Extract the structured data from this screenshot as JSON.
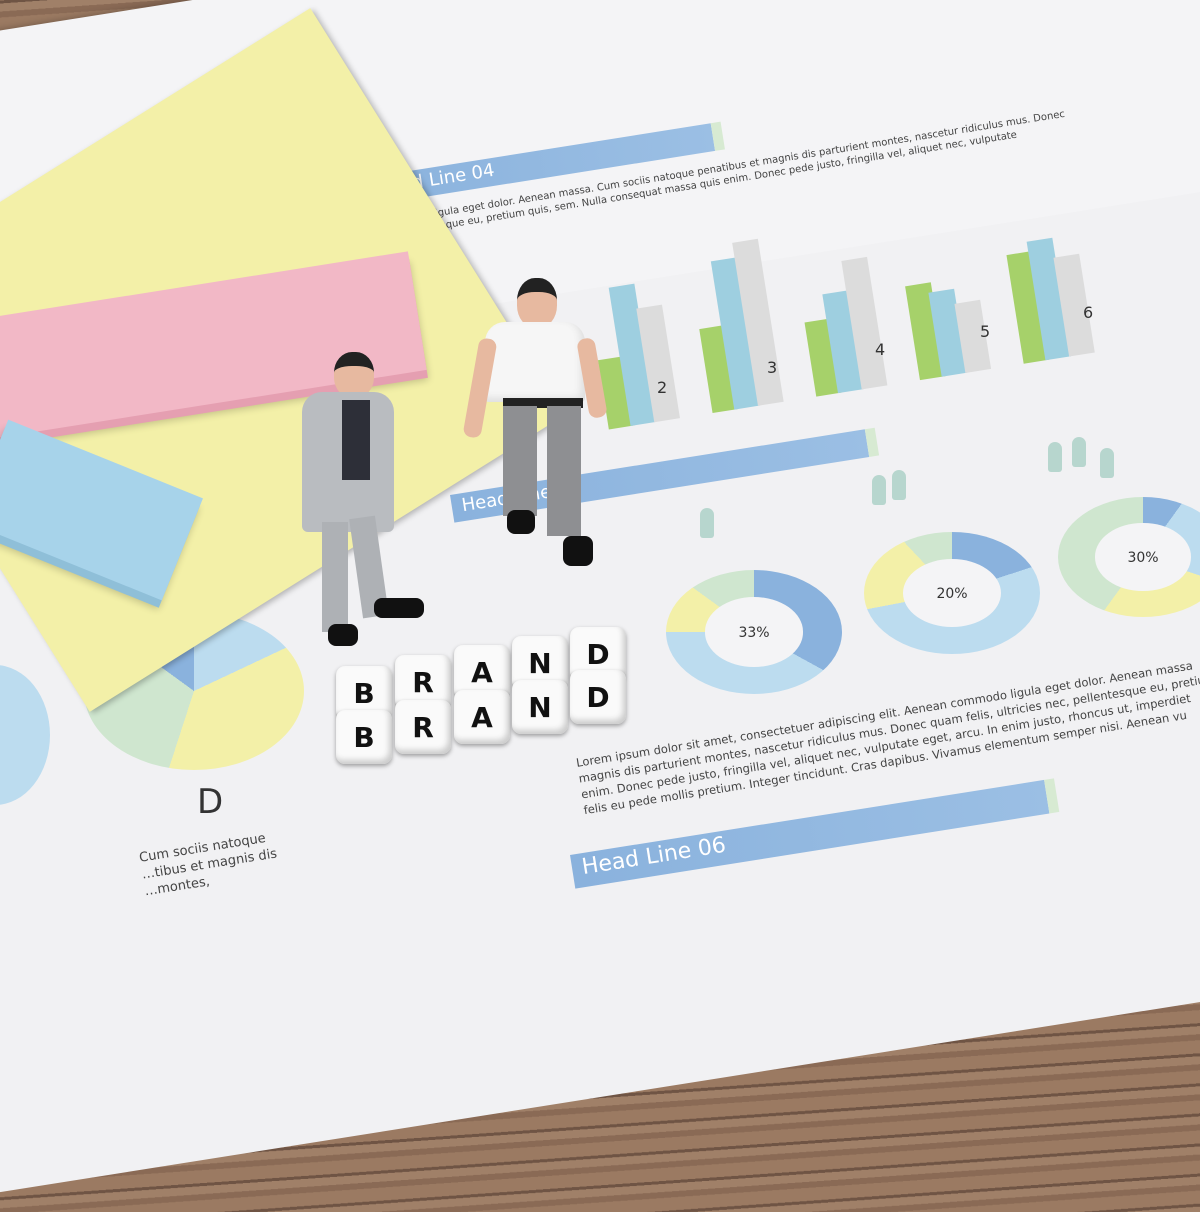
{
  "document": {
    "headlines": [
      "Head Line 04",
      "Head Line 05",
      "Head Line 06"
    ],
    "paragraph_top": [
      "…odo ligula eget dolor. Aenean massa. Cum sociis natoque penatibus et magnis dis parturient montes, nascetur ridiculus mus. Donec",
      "…llentesque eu, pretium quis, sem. Nulla consequat massa quis enim. Donec pede justo, fringilla vel, aliquet nec, vulputate"
    ],
    "bar_chart_labels": [
      "2",
      "3",
      "4",
      "5",
      "6"
    ],
    "donut_labels": [
      "33%",
      "20%",
      "30%"
    ],
    "letter": "D",
    "caption_left": [
      "Cum sociis natoque",
      "…tibus et magnis dis",
      "…montes,"
    ],
    "paragraph_main": [
      "Lorem ipsum dolor sit amet, consectetuer adipiscing elit. Aenean commodo ligula eget dolor. Aenean massa",
      "magnis dis parturient montes, nascetur ridiculus mus. Donec quam felis, ultricies nec, pellentesque eu, pretium",
      "enim. Donec pede justo, fringilla vel, aliquet nec, vulputate eget, arcu. In enim justo, rhoncus ut, imperdiet",
      "felis eu pede mollis pretium. Integer tincidunt. Cras dapibus. Vivamus elementum semper nisi. Aenean vu"
    ]
  },
  "dice": {
    "row1": [
      "B",
      "R",
      "A",
      "N",
      "D"
    ],
    "row2": [
      "B",
      "R",
      "A",
      "N",
      "D"
    ]
  },
  "colors": {
    "green": "#a6d16a",
    "teal": "#9ecfe0",
    "grey": "#dcdcdc",
    "blue": "#8ab2dd",
    "yellow": "#f3f0a8",
    "pink": "#f2b8c6",
    "sky": "#a7d3ea"
  }
}
